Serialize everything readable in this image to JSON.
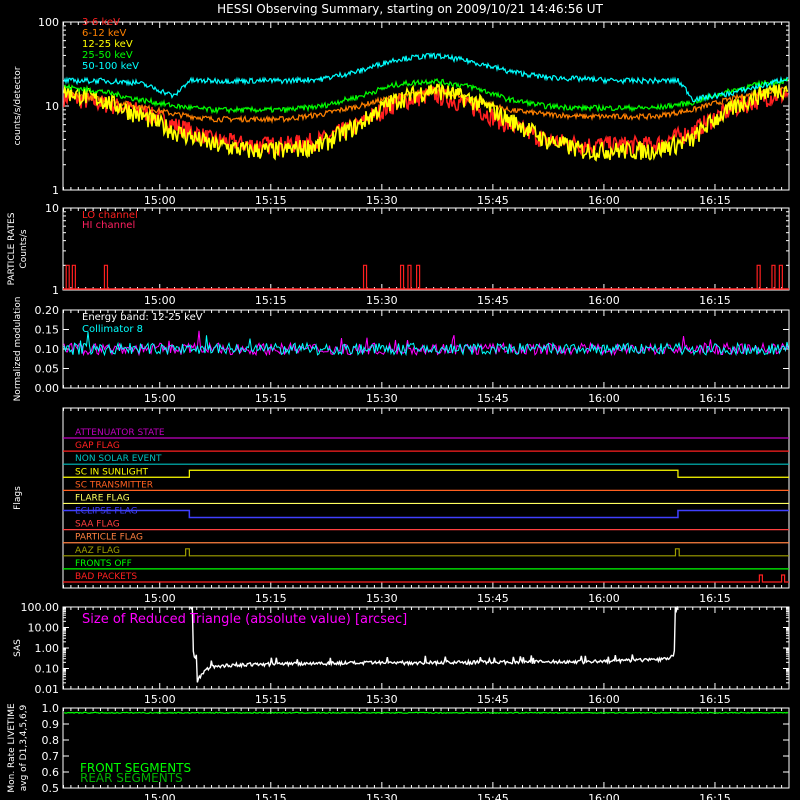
{
  "title": "HESSI Observing Summary, starting on 2009/10/21 14:46:56 UT",
  "time_ticks": [
    "15:00",
    "15:15",
    "15:30",
    "15:45",
    "16:00",
    "16:15"
  ],
  "chart_data": [
    {
      "type": "line",
      "panel": "count-rates",
      "ylabel": "counts/s/detector",
      "yscale": "log",
      "ylim": [
        1,
        100
      ],
      "yticks": [
        "1",
        "10",
        "100"
      ],
      "xlim": [
        "14:46:56",
        "16:25"
      ],
      "series": [
        {
          "name": "3-6 keV",
          "color": "#ff2020",
          "x": [
            "14:47",
            "14:52",
            "14:57",
            "15:02",
            "15:07",
            "15:12",
            "15:17",
            "15:22",
            "15:27",
            "15:32",
            "15:37",
            "15:42",
            "15:47",
            "15:52",
            "15:57",
            "16:02",
            "16:07",
            "16:12",
            "16:17",
            "16:22",
            "16:25"
          ],
          "values": [
            13,
            11,
            9,
            6,
            4,
            3.5,
            3.5,
            4,
            6,
            11,
            14,
            10,
            6,
            4,
            3.5,
            3.5,
            3.5,
            5,
            9,
            13,
            14
          ]
        },
        {
          "name": "6-12 keV",
          "color": "#ff8000",
          "x": [
            "14:47",
            "14:52",
            "14:57",
            "15:02",
            "15:07",
            "15:12",
            "15:17",
            "15:22",
            "15:27",
            "15:32",
            "15:37",
            "15:42",
            "15:47",
            "15:52",
            "15:57",
            "16:02",
            "16:07",
            "16:12",
            "16:17",
            "16:22",
            "16:25"
          ],
          "values": [
            14,
            12,
            10,
            8,
            7,
            7,
            7,
            8,
            10,
            13,
            15,
            12,
            9,
            8,
            7.5,
            7.5,
            7.5,
            9,
            12,
            15,
            16
          ]
        },
        {
          "name": "12-25 keV",
          "color": "#ffff00",
          "x": [
            "14:47",
            "14:52",
            "14:57",
            "15:02",
            "15:07",
            "15:12",
            "15:17",
            "15:22",
            "15:27",
            "15:32",
            "15:37",
            "15:42",
            "15:47",
            "15:52",
            "15:57",
            "16:02",
            "16:07",
            "16:12",
            "16:17",
            "16:22",
            "16:25"
          ],
          "values": [
            15,
            12,
            8,
            5,
            3.5,
            3,
            3,
            3.5,
            6,
            12,
            16,
            12,
            7,
            4,
            3,
            3,
            3,
            4,
            9,
            15,
            17
          ]
        },
        {
          "name": "25-50 keV",
          "color": "#00ff00",
          "x": [
            "14:47",
            "14:52",
            "14:57",
            "15:02",
            "15:07",
            "15:12",
            "15:17",
            "15:22",
            "15:27",
            "15:32",
            "15:37",
            "15:42",
            "15:47",
            "15:52",
            "15:57",
            "16:02",
            "16:07",
            "16:12",
            "16:17",
            "16:22",
            "16:25"
          ],
          "values": [
            17,
            15,
            12,
            10,
            9,
            9,
            9,
            10,
            13,
            18,
            20,
            17,
            12,
            10,
            9.5,
            9.5,
            9.5,
            11,
            15,
            19,
            20
          ]
        },
        {
          "name": "50-100 keV",
          "color": "#00ffff",
          "x": [
            "14:47",
            "14:52",
            "14:57",
            "15:02",
            "15:04",
            "15:07",
            "15:12",
            "15:17",
            "15:22",
            "15:27",
            "15:32",
            "15:37",
            "15:42",
            "15:47",
            "15:52",
            "15:57",
            "16:02",
            "16:07",
            "16:10",
            "16:12",
            "16:17",
            "16:22",
            "16:25"
          ],
          "values": [
            20,
            20,
            19,
            13,
            20,
            20,
            20,
            20,
            21,
            26,
            36,
            40,
            34,
            26,
            22,
            21,
            20,
            20,
            20,
            12,
            14,
            18,
            22
          ]
        }
      ]
    },
    {
      "type": "line",
      "panel": "particle-rates",
      "ylabel": "PARTICLE RATES Counts/s",
      "yscale": "log",
      "ylim": [
        1,
        10
      ],
      "yticks": [
        "1",
        "10"
      ],
      "series": [
        {
          "name": "LO channel",
          "color": "#ff2020",
          "x": [],
          "values": []
        },
        {
          "name": "HI channel",
          "color": "#ff2060",
          "x": [],
          "values": []
        }
      ],
      "spikes": [
        {
          "x": "14:47:30",
          "value": 2
        },
        {
          "x": "14:48:20",
          "value": 2
        },
        {
          "x": "14:52:40",
          "value": 2
        },
        {
          "x": "15:27:40",
          "value": 2
        },
        {
          "x": "15:32:40",
          "value": 2
        },
        {
          "x": "15:33:40",
          "value": 2
        },
        {
          "x": "15:34:50",
          "value": 2
        },
        {
          "x": "16:20:50",
          "value": 2
        },
        {
          "x": "16:22:50",
          "value": 2
        },
        {
          "x": "16:23:50",
          "value": 2
        }
      ]
    },
    {
      "type": "line",
      "panel": "modulation",
      "ylabel": "Normalized modulation",
      "ylim": [
        0,
        0.2
      ],
      "yticks": [
        "0.00",
        "0.05",
        "0.10",
        "0.15",
        "0.20"
      ],
      "annotation": "Energy band: 12-25 keV",
      "series": [
        {
          "name": "",
          "color": "#ff00ff",
          "mean": 0.1,
          "spread": 0.015
        },
        {
          "name": "Collimator 8",
          "color": "#00ffff",
          "mean": 0.1,
          "spread": 0.015
        }
      ]
    },
    {
      "type": "line",
      "panel": "flags",
      "ylabel": "Flags",
      "flags": [
        {
          "name": "ATTENUATOR STATE",
          "color": "#c000c0",
          "steps": []
        },
        {
          "name": "GAP FLAG",
          "color": "#ff2020",
          "steps": []
        },
        {
          "name": "NON SOLAR EVENT",
          "color": "#00c0c0",
          "steps": []
        },
        {
          "name": "SC IN SUNLIGHT",
          "color": "#ffff00",
          "steps": [
            [
              "15:04",
              "16:10"
            ]
          ]
        },
        {
          "name": "SC TRANSMITTER",
          "color": "#ff6020",
          "steps": []
        },
        {
          "name": "FLARE FLAG",
          "color": "#ffff60",
          "steps": []
        },
        {
          "name": "ECLIPSE FLAG",
          "color": "#4040ff",
          "steps": [
            [
              "14:46:56",
              "15:04"
            ],
            [
              "16:10",
              "16:25"
            ]
          ]
        },
        {
          "name": "SAA FLAG",
          "color": "#ff4040",
          "steps": []
        },
        {
          "name": "PARTICLE FLAG",
          "color": "#ff8040",
          "steps": []
        },
        {
          "name": "AAZ FLAG",
          "color": "#a0a000",
          "steps": [
            [
              "15:03:30",
              "15:04"
            ],
            [
              "16:09:40",
              "16:10:10"
            ]
          ]
        },
        {
          "name": "FRONTS OFF",
          "color": "#00ff00",
          "steps": []
        },
        {
          "name": "BAD PACKETS",
          "color": "#ff2020",
          "steps": [
            [
              "16:21:00",
              "16:21:10"
            ],
            [
              "16:24:00",
              "16:24:10"
            ]
          ]
        }
      ]
    },
    {
      "type": "line",
      "panel": "sas",
      "ylabel": "SAS",
      "yscale": "log",
      "ylim": [
        0.01,
        100
      ],
      "yticks": [
        "0.01",
        "0.10",
        "1.00",
        "10.00",
        "100.00"
      ],
      "annotation": "Size of Reduced Triangle (absolute value) [arcsec]",
      "series": [
        {
          "name": "",
          "color": "#ffffff",
          "x": [
            "15:04",
            "15:05",
            "15:07",
            "15:10",
            "15:20",
            "15:40",
            "16:00",
            "16:09",
            "16:10"
          ],
          "values": [
            100,
            0.02,
            0.12,
            0.15,
            0.18,
            0.2,
            0.22,
            0.3,
            100
          ]
        }
      ]
    },
    {
      "type": "line",
      "panel": "livetime",
      "ylabel": "Mon. Rate LIVETIME avg of D1,3,4,5,6,9",
      "ylim": [
        0.5,
        1.0
      ],
      "yticks": [
        "0.5",
        "0.6",
        "0.7",
        "0.8",
        "0.9",
        "1.0"
      ],
      "series": [
        {
          "name": "FRONT SEGMENTS",
          "color": "#00ff00",
          "x": [
            "14:47",
            "15:04",
            "16:10",
            "16:25"
          ],
          "values": [
            0.97,
            0.97,
            0.97,
            0.97
          ]
        },
        {
          "name": "REAR SEGMENTS",
          "color": "#00b000",
          "x": [],
          "values": []
        }
      ]
    }
  ]
}
